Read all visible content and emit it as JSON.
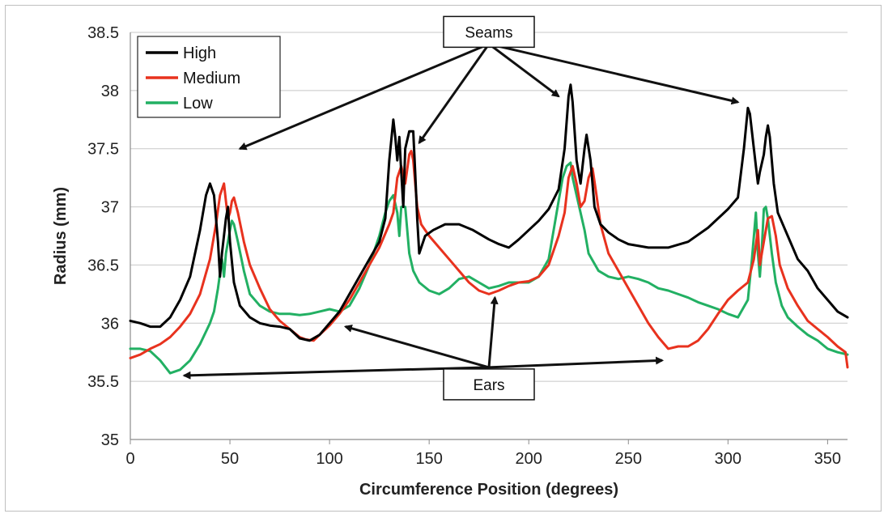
{
  "chart_data": {
    "type": "line",
    "title": "",
    "xlabel": "Circumference Position (degrees)",
    "ylabel": "Radius (mm)",
    "xlim": [
      0,
      360
    ],
    "ylim": [
      35,
      38.5
    ],
    "xticks": [
      "0",
      "50",
      "100",
      "150",
      "200",
      "250",
      "300",
      "350"
    ],
    "yticks": [
      "35",
      "35.5",
      "36",
      "36.5",
      "37",
      "37.5",
      "38",
      "38.5"
    ],
    "grid": "horizontal",
    "legend_position": "top-left",
    "colors": {
      "High": "#000000",
      "Medium": "#e8321e",
      "Low": "#22b063"
    },
    "series": [
      {
        "name": "High",
        "points": [
          [
            0,
            36.02
          ],
          [
            5,
            36.0
          ],
          [
            10,
            35.97
          ],
          [
            15,
            35.97
          ],
          [
            20,
            36.05
          ],
          [
            25,
            36.2
          ],
          [
            30,
            36.4
          ],
          [
            35,
            36.8
          ],
          [
            38,
            37.1
          ],
          [
            40,
            37.2
          ],
          [
            42,
            37.1
          ],
          [
            44,
            36.7
          ],
          [
            45,
            36.4
          ],
          [
            46,
            36.6
          ],
          [
            48,
            36.9
          ],
          [
            49,
            37.0
          ],
          [
            50,
            36.7
          ],
          [
            52,
            36.35
          ],
          [
            55,
            36.15
          ],
          [
            60,
            36.05
          ],
          [
            65,
            36.0
          ],
          [
            70,
            35.98
          ],
          [
            75,
            35.97
          ],
          [
            80,
            35.95
          ],
          [
            85,
            35.87
          ],
          [
            90,
            35.85
          ],
          [
            95,
            35.9
          ],
          [
            100,
            36.0
          ],
          [
            105,
            36.1
          ],
          [
            110,
            36.25
          ],
          [
            115,
            36.4
          ],
          [
            120,
            36.55
          ],
          [
            125,
            36.7
          ],
          [
            128,
            36.9
          ],
          [
            130,
            37.4
          ],
          [
            132,
            37.75
          ],
          [
            133,
            37.6
          ],
          [
            134,
            37.4
          ],
          [
            135,
            37.6
          ],
          [
            136,
            37.3
          ],
          [
            137,
            37.0
          ],
          [
            138,
            37.5
          ],
          [
            140,
            37.65
          ],
          [
            142,
            37.65
          ],
          [
            143,
            37.3
          ],
          [
            144,
            36.9
          ],
          [
            145,
            36.6
          ],
          [
            148,
            36.75
          ],
          [
            152,
            36.8
          ],
          [
            158,
            36.85
          ],
          [
            165,
            36.85
          ],
          [
            172,
            36.8
          ],
          [
            180,
            36.72
          ],
          [
            185,
            36.68
          ],
          [
            190,
            36.65
          ],
          [
            195,
            36.72
          ],
          [
            200,
            36.8
          ],
          [
            205,
            36.88
          ],
          [
            210,
            36.98
          ],
          [
            215,
            37.15
          ],
          [
            218,
            37.5
          ],
          [
            220,
            37.95
          ],
          [
            221,
            38.05
          ],
          [
            222,
            37.9
          ],
          [
            224,
            37.4
          ],
          [
            226,
            37.2
          ],
          [
            228,
            37.5
          ],
          [
            229,
            37.62
          ],
          [
            231,
            37.4
          ],
          [
            233,
            37.0
          ],
          [
            236,
            36.85
          ],
          [
            240,
            36.78
          ],
          [
            245,
            36.72
          ],
          [
            250,
            36.68
          ],
          [
            260,
            36.65
          ],
          [
            270,
            36.65
          ],
          [
            280,
            36.7
          ],
          [
            290,
            36.82
          ],
          [
            295,
            36.9
          ],
          [
            300,
            36.98
          ],
          [
            305,
            37.08
          ],
          [
            308,
            37.5
          ],
          [
            310,
            37.85
          ],
          [
            311,
            37.8
          ],
          [
            313,
            37.5
          ],
          [
            315,
            37.2
          ],
          [
            316,
            37.3
          ],
          [
            318,
            37.45
          ],
          [
            319,
            37.6
          ],
          [
            320,
            37.7
          ],
          [
            321,
            37.6
          ],
          [
            323,
            37.2
          ],
          [
            325,
            36.95
          ],
          [
            330,
            36.75
          ],
          [
            335,
            36.55
          ],
          [
            340,
            36.45
          ],
          [
            345,
            36.3
          ],
          [
            350,
            36.2
          ],
          [
            355,
            36.1
          ],
          [
            360,
            36.05
          ]
        ]
      },
      {
        "name": "Medium",
        "points": [
          [
            0,
            35.7
          ],
          [
            5,
            35.73
          ],
          [
            10,
            35.78
          ],
          [
            15,
            35.82
          ],
          [
            20,
            35.88
          ],
          [
            25,
            35.97
          ],
          [
            30,
            36.08
          ],
          [
            35,
            36.25
          ],
          [
            40,
            36.55
          ],
          [
            43,
            36.85
          ],
          [
            45,
            37.1
          ],
          [
            47,
            37.2
          ],
          [
            48,
            37.05
          ],
          [
            49,
            36.9
          ],
          [
            50,
            36.95
          ],
          [
            51,
            37.05
          ],
          [
            52,
            37.08
          ],
          [
            54,
            36.95
          ],
          [
            57,
            36.7
          ],
          [
            60,
            36.5
          ],
          [
            65,
            36.3
          ],
          [
            70,
            36.12
          ],
          [
            75,
            36.02
          ],
          [
            80,
            35.95
          ],
          [
            85,
            35.88
          ],
          [
            88,
            35.86
          ],
          [
            92,
            35.85
          ],
          [
            95,
            35.9
          ],
          [
            100,
            35.98
          ],
          [
            105,
            36.08
          ],
          [
            110,
            36.2
          ],
          [
            115,
            36.35
          ],
          [
            120,
            36.5
          ],
          [
            125,
            36.65
          ],
          [
            130,
            36.85
          ],
          [
            132,
            36.95
          ],
          [
            134,
            37.25
          ],
          [
            136,
            37.35
          ],
          [
            138,
            37.2
          ],
          [
            140,
            37.45
          ],
          [
            141,
            37.48
          ],
          [
            142,
            37.4
          ],
          [
            144,
            37.0
          ],
          [
            146,
            36.85
          ],
          [
            150,
            36.75
          ],
          [
            155,
            36.65
          ],
          [
            160,
            36.55
          ],
          [
            165,
            36.45
          ],
          [
            170,
            36.35
          ],
          [
            175,
            36.28
          ],
          [
            180,
            36.25
          ],
          [
            185,
            36.28
          ],
          [
            190,
            36.32
          ],
          [
            195,
            36.35
          ],
          [
            200,
            36.36
          ],
          [
            205,
            36.4
          ],
          [
            210,
            36.5
          ],
          [
            215,
            36.75
          ],
          [
            218,
            36.95
          ],
          [
            220,
            37.25
          ],
          [
            222,
            37.35
          ],
          [
            224,
            37.2
          ],
          [
            226,
            37.0
          ],
          [
            228,
            37.05
          ],
          [
            230,
            37.25
          ],
          [
            232,
            37.33
          ],
          [
            234,
            37.1
          ],
          [
            236,
            36.85
          ],
          [
            240,
            36.6
          ],
          [
            245,
            36.45
          ],
          [
            250,
            36.3
          ],
          [
            255,
            36.15
          ],
          [
            260,
            36.0
          ],
          [
            265,
            35.88
          ],
          [
            270,
            35.78
          ],
          [
            275,
            35.8
          ],
          [
            280,
            35.8
          ],
          [
            285,
            35.85
          ],
          [
            290,
            35.95
          ],
          [
            295,
            36.08
          ],
          [
            300,
            36.2
          ],
          [
            305,
            36.28
          ],
          [
            310,
            36.35
          ],
          [
            313,
            36.55
          ],
          [
            315,
            36.8
          ],
          [
            316,
            36.5
          ],
          [
            318,
            36.7
          ],
          [
            320,
            36.9
          ],
          [
            322,
            36.92
          ],
          [
            324,
            36.75
          ],
          [
            326,
            36.5
          ],
          [
            330,
            36.3
          ],
          [
            335,
            36.15
          ],
          [
            340,
            36.02
          ],
          [
            345,
            35.95
          ],
          [
            350,
            35.88
          ],
          [
            355,
            35.8
          ],
          [
            359,
            35.75
          ],
          [
            360,
            35.62
          ]
        ]
      },
      {
        "name": "Low",
        "points": [
          [
            0,
            35.78
          ],
          [
            5,
            35.78
          ],
          [
            10,
            35.76
          ],
          [
            15,
            35.68
          ],
          [
            20,
            35.57
          ],
          [
            25,
            35.6
          ],
          [
            30,
            35.68
          ],
          [
            35,
            35.82
          ],
          [
            40,
            36.0
          ],
          [
            42,
            36.1
          ],
          [
            44,
            36.3
          ],
          [
            46,
            36.55
          ],
          [
            47,
            36.4
          ],
          [
            48,
            36.6
          ],
          [
            50,
            36.8
          ],
          [
            51,
            36.88
          ],
          [
            52,
            36.85
          ],
          [
            54,
            36.7
          ],
          [
            57,
            36.45
          ],
          [
            60,
            36.25
          ],
          [
            65,
            36.15
          ],
          [
            70,
            36.1
          ],
          [
            75,
            36.08
          ],
          [
            80,
            36.08
          ],
          [
            85,
            36.07
          ],
          [
            90,
            36.08
          ],
          [
            95,
            36.1
          ],
          [
            100,
            36.12
          ],
          [
            105,
            36.1
          ],
          [
            110,
            36.15
          ],
          [
            115,
            36.3
          ],
          [
            120,
            36.5
          ],
          [
            125,
            36.75
          ],
          [
            128,
            36.95
          ],
          [
            130,
            37.05
          ],
          [
            132,
            37.1
          ],
          [
            134,
            36.95
          ],
          [
            135,
            36.75
          ],
          [
            136,
            37.0
          ],
          [
            138,
            37.0
          ],
          [
            140,
            36.6
          ],
          [
            142,
            36.45
          ],
          [
            145,
            36.35
          ],
          [
            150,
            36.28
          ],
          [
            155,
            36.25
          ],
          [
            160,
            36.3
          ],
          [
            165,
            36.38
          ],
          [
            170,
            36.4
          ],
          [
            175,
            36.35
          ],
          [
            180,
            36.3
          ],
          [
            185,
            36.32
          ],
          [
            190,
            36.35
          ],
          [
            195,
            36.35
          ],
          [
            200,
            36.35
          ],
          [
            205,
            36.4
          ],
          [
            210,
            36.55
          ],
          [
            213,
            36.85
          ],
          [
            215,
            37.05
          ],
          [
            217,
            37.25
          ],
          [
            219,
            37.35
          ],
          [
            221,
            37.38
          ],
          [
            222,
            37.25
          ],
          [
            224,
            37.1
          ],
          [
            226,
            36.95
          ],
          [
            228,
            36.8
          ],
          [
            230,
            36.6
          ],
          [
            235,
            36.45
          ],
          [
            240,
            36.4
          ],
          [
            245,
            36.38
          ],
          [
            250,
            36.4
          ],
          [
            255,
            36.38
          ],
          [
            260,
            36.35
          ],
          [
            265,
            36.3
          ],
          [
            270,
            36.28
          ],
          [
            275,
            36.25
          ],
          [
            280,
            36.22
          ],
          [
            285,
            36.18
          ],
          [
            290,
            36.15
          ],
          [
            295,
            36.12
          ],
          [
            300,
            36.08
          ],
          [
            305,
            36.05
          ],
          [
            310,
            36.2
          ],
          [
            312,
            36.55
          ],
          [
            314,
            36.95
          ],
          [
            315,
            36.6
          ],
          [
            316,
            36.4
          ],
          [
            317,
            36.65
          ],
          [
            318,
            36.98
          ],
          [
            319,
            37.0
          ],
          [
            320,
            36.9
          ],
          [
            322,
            36.6
          ],
          [
            324,
            36.35
          ],
          [
            327,
            36.15
          ],
          [
            330,
            36.05
          ],
          [
            335,
            35.97
          ],
          [
            340,
            35.9
          ],
          [
            345,
            35.85
          ],
          [
            350,
            35.78
          ],
          [
            355,
            35.75
          ],
          [
            360,
            35.73
          ]
        ]
      }
    ],
    "annotations": [
      {
        "label": "Seams",
        "origin": [
          180,
          38.4
        ],
        "targets": [
          [
            55,
            37.5
          ],
          [
            145,
            37.55
          ],
          [
            215,
            37.95
          ],
          [
            305,
            37.9
          ]
        ]
      },
      {
        "label": "Ears",
        "origin": [
          180,
          35.62
        ],
        "targets": [
          [
            27,
            35.55
          ],
          [
            108,
            35.97
          ],
          [
            183,
            36.22
          ],
          [
            267,
            35.68
          ]
        ]
      }
    ]
  }
}
